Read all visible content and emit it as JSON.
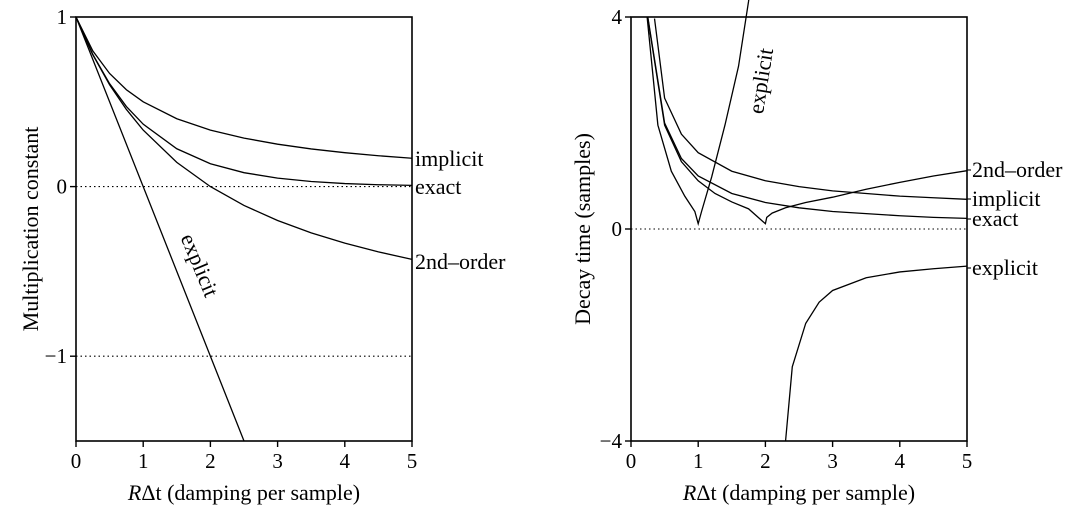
{
  "chart_data": [
    {
      "type": "line",
      "title": "",
      "xlabel_italic": "R",
      "xlabel": "Δt (damping per sample)",
      "ylabel": "Multiplication constant",
      "xlim": [
        0,
        5
      ],
      "ylim": [
        -1.5,
        1
      ],
      "xticks": [
        "0",
        "1",
        "2",
        "3",
        "4",
        "5"
      ],
      "yticks": [
        {
          "value": 1,
          "label": "1"
        },
        {
          "value": 0,
          "label": "0"
        },
        {
          "value": -1,
          "label": "−1"
        }
      ],
      "reference_lines": [
        0,
        -1
      ],
      "series": [
        {
          "name": "implicit",
          "label_position": "right-end",
          "x": [
            0,
            0.25,
            0.5,
            0.75,
            1,
            1.5,
            2,
            2.5,
            3,
            3.5,
            4,
            4.5,
            5
          ],
          "y": [
            1,
            0.8,
            0.667,
            0.571,
            0.5,
            0.4,
            0.333,
            0.286,
            0.25,
            0.222,
            0.2,
            0.182,
            0.167
          ]
        },
        {
          "name": "exact",
          "label_position": "right-end",
          "x": [
            0,
            0.25,
            0.5,
            0.75,
            1,
            1.5,
            2,
            2.5,
            3,
            3.5,
            4,
            4.5,
            5
          ],
          "y": [
            1,
            0.779,
            0.607,
            0.472,
            0.368,
            0.223,
            0.135,
            0.082,
            0.05,
            0.03,
            0.018,
            0.011,
            0.007
          ]
        },
        {
          "name": "2nd–order",
          "label_position": "right-end",
          "x": [
            0,
            0.25,
            0.5,
            0.75,
            1,
            1.5,
            2,
            2.5,
            3,
            3.5,
            4,
            4.5,
            5
          ],
          "y": [
            1,
            0.778,
            0.6,
            0.455,
            0.333,
            0.143,
            0,
            -0.111,
            -0.2,
            -0.273,
            -0.333,
            -0.385,
            -0.429
          ]
        },
        {
          "name": "explicit",
          "label_position": "along-line",
          "x": [
            0,
            2.5
          ],
          "y": [
            1,
            -1.5
          ]
        }
      ]
    },
    {
      "type": "line",
      "title": "",
      "xlabel_italic": "R",
      "xlabel": "Δt (damping per sample)",
      "ylabel": "Decay time (samples)",
      "xlim": [
        0,
        5
      ],
      "ylim": [
        -4,
        4
      ],
      "xticks": [
        "0",
        "1",
        "2",
        "3",
        "4",
        "5"
      ],
      "yticks": [
        {
          "value": 4,
          "label": "4"
        },
        {
          "value": 0,
          "label": "0"
        },
        {
          "value": -4,
          "label": "−4"
        }
      ],
      "reference_lines": [
        0
      ],
      "series": [
        {
          "name": "implicit",
          "label_position": "right-end",
          "x": [
            0.35,
            0.5,
            0.75,
            1,
            1.5,
            2,
            2.5,
            3,
            3.5,
            4,
            4.5,
            5
          ],
          "y": [
            3.97,
            2.47,
            1.79,
            1.44,
            1.09,
            0.91,
            0.8,
            0.72,
            0.67,
            0.62,
            0.59,
            0.56
          ]
        },
        {
          "name": "exact",
          "label_position": "right-end",
          "x": [
            0.25,
            0.5,
            0.75,
            1,
            1.5,
            2,
            2.5,
            3,
            3.5,
            4,
            4.5,
            5
          ],
          "y": [
            4,
            2,
            1.33,
            1,
            0.67,
            0.5,
            0.4,
            0.33,
            0.29,
            0.25,
            0.22,
            0.2
          ]
        },
        {
          "name": "2nd–order",
          "label_position": "right-end",
          "x": [
            0.25,
            0.5,
            0.75,
            1,
            1.25,
            1.5,
            1.75,
            2,
            2.02,
            2.1,
            2.3,
            2.6,
            3,
            3.5,
            4,
            4.5,
            5
          ],
          "y": [
            3.98,
            1.96,
            1.27,
            0.91,
            0.67,
            0.51,
            0.38,
            0.1,
            0.22,
            0.3,
            0.4,
            0.5,
            0.6,
            0.75,
            0.88,
            1,
            1.1
          ]
        },
        {
          "name": "explicit",
          "label_position": "along-line",
          "x": [
            0.24,
            0.4,
            0.6,
            0.8,
            0.95,
            1,
            1.05,
            1.2,
            1.4,
            1.6,
            1.75,
            1.8
          ],
          "y": [
            4,
            1.96,
            1.09,
            0.62,
            0.33,
            0.1,
            0.33,
            0.98,
            1.97,
            3.07,
            4.3,
            4.98
          ]
        },
        {
          "name": "explicit",
          "label_position": "right-end",
          "x": [
            2.3,
            2.4,
            2.6,
            2.8,
            3,
            3.5,
            4,
            4.5,
            5
          ],
          "y": [
            -4,
            -2.6,
            -1.78,
            -1.38,
            -1.16,
            -0.92,
            -0.81,
            -0.75,
            -0.7
          ]
        }
      ]
    }
  ]
}
